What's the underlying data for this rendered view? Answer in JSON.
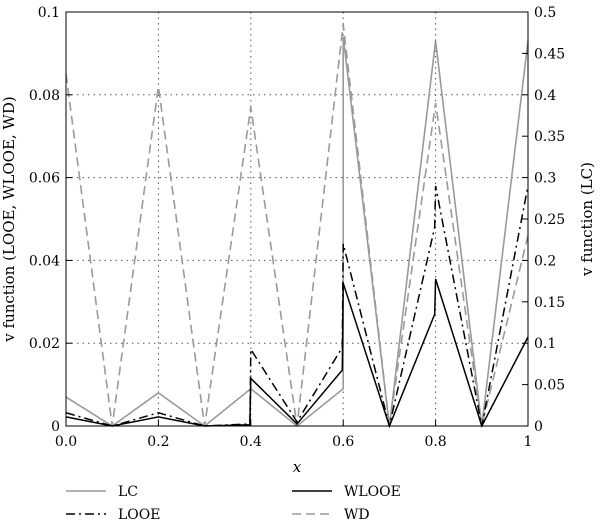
{
  "chart_data": {
    "type": "line",
    "xlabel": "x",
    "ylabel_left": "v function (LOOE, WLOOE, WD)",
    "ylabel_right": "v function (LC)",
    "xlim": [
      0,
      1
    ],
    "ylim_left": [
      0,
      0.1
    ],
    "ylim_right": [
      0,
      0.5
    ],
    "x_ticks": [
      "0.0",
      "0.2",
      "0.4",
      "0.6",
      "0.8",
      "1"
    ],
    "y_ticks_left": [
      "0",
      "0.02",
      "0.04",
      "0.06",
      "0.08",
      "0.1"
    ],
    "y_ticks_right": [
      "0",
      "0.05",
      "0.1",
      "0.15",
      "0.2",
      "0.25",
      "0.3",
      "0.35",
      "0.4",
      "0.45",
      "0.5"
    ],
    "grid": "dotted",
    "legend_position": "bottom",
    "series": [
      {
        "name": "LC",
        "axis": "right",
        "color": "#9a9a9a",
        "dash": "solid",
        "points": [
          [
            0,
            0.035
          ],
          [
            0.1,
            0
          ],
          [
            0.2,
            0.04
          ],
          [
            0.3,
            0
          ],
          [
            0.4,
            0.045
          ],
          [
            0.5,
            0
          ],
          [
            0.6,
            0.045
          ],
          [
            0.6,
            0.47
          ],
          [
            0.7,
            0
          ],
          [
            0.8,
            0.465
          ],
          [
            0.9,
            0
          ],
          [
            1.0,
            0.465
          ]
        ]
      },
      {
        "name": "LOOE",
        "axis": "left",
        "color": "#000000",
        "dash": "dashdot",
        "points": [
          [
            0,
            0.0032
          ],
          [
            0.1,
            0
          ],
          [
            0.2,
            0.0032
          ],
          [
            0.3,
            0
          ],
          [
            0.398,
            0.0005
          ],
          [
            0.4,
            0.0185
          ],
          [
            0.5,
            0.001
          ],
          [
            0.598,
            0.019
          ],
          [
            0.6,
            0.044
          ],
          [
            0.7,
            0
          ],
          [
            0.798,
            0.048
          ],
          [
            0.8,
            0.058
          ],
          [
            0.9,
            0
          ],
          [
            1.0,
            0.058
          ]
        ]
      },
      {
        "name": "WLOOE",
        "axis": "left",
        "color": "#000000",
        "dash": "solid",
        "points": [
          [
            0,
            0.0022
          ],
          [
            0.1,
            0
          ],
          [
            0.2,
            0.0022
          ],
          [
            0.3,
            0
          ],
          [
            0.398,
            0.0003
          ],
          [
            0.4,
            0.0115
          ],
          [
            0.5,
            0.0005
          ],
          [
            0.598,
            0.0135
          ],
          [
            0.6,
            0.0345
          ],
          [
            0.7,
            0
          ],
          [
            0.798,
            0.027
          ],
          [
            0.8,
            0.0355
          ],
          [
            0.9,
            0
          ],
          [
            1.0,
            0.0215
          ]
        ]
      },
      {
        "name": "WD",
        "axis": "left",
        "color": "#9a9a9a",
        "dash": "dashed",
        "points": [
          [
            0,
            0.085
          ],
          [
            0.1,
            0
          ],
          [
            0.2,
            0.082
          ],
          [
            0.3,
            0
          ],
          [
            0.4,
            0.077
          ],
          [
            0.5,
            0
          ],
          [
            0.6,
            0.097
          ],
          [
            0.7,
            0
          ],
          [
            0.8,
            0.078
          ],
          [
            0.9,
            0
          ],
          [
            1.0,
            0.046
          ]
        ]
      }
    ]
  }
}
